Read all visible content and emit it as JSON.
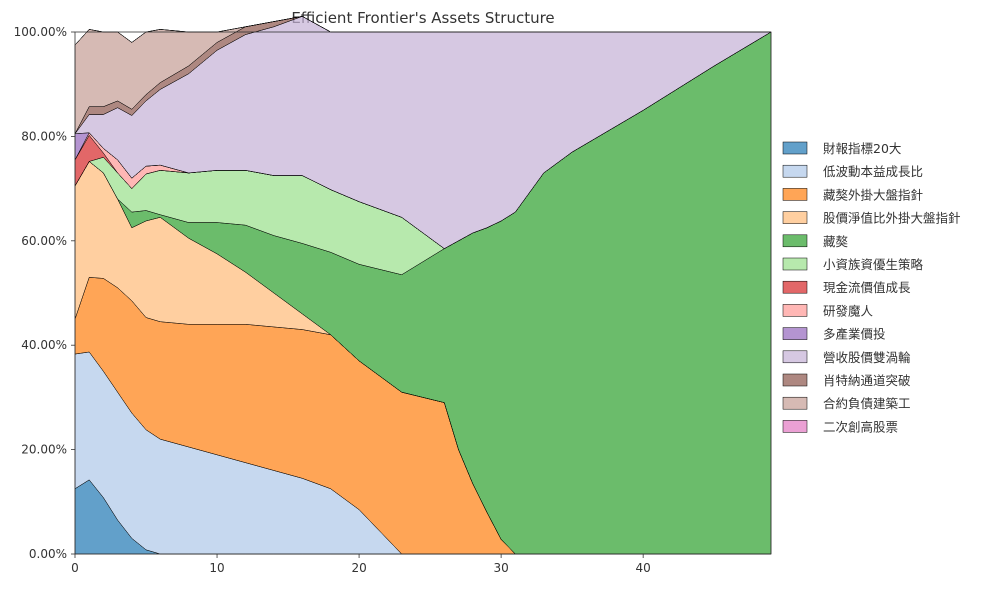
{
  "chart_data": {
    "type": "area",
    "stacked": true,
    "title": "Efficient Frontier's Assets Structure",
    "xlabel": "",
    "ylabel": "",
    "xlim": [
      0,
      49
    ],
    "ylim": [
      0,
      1
    ],
    "x_ticks": [
      0,
      10,
      20,
      30,
      40
    ],
    "y_ticks": [
      0,
      0.2,
      0.4,
      0.6,
      0.8,
      1.0
    ],
    "y_tick_labels": [
      "0.00%",
      "20.00%",
      "40.00%",
      "60.00%",
      "80.00%",
      "100.00%"
    ],
    "legend_position": "right",
    "grid": false,
    "x": [
      0,
      1,
      2,
      3,
      4,
      5,
      6,
      8,
      10,
      12,
      14,
      16,
      18,
      20,
      23,
      26,
      27,
      28,
      29,
      30,
      31,
      33,
      35,
      40,
      45,
      49
    ],
    "series": [
      {
        "name": "財報指標20大",
        "color": "#1f77b4",
        "values": [
          0.125,
          0.142,
          0.108,
          0.065,
          0.03,
          0.008,
          0,
          0,
          0,
          0,
          0,
          0,
          0,
          0,
          0,
          0,
          0,
          0,
          0,
          0,
          0,
          0,
          0,
          0,
          0,
          0
        ]
      },
      {
        "name": "低波動本益成長比",
        "color": "#aec7e8",
        "values": [
          0.258,
          0.245,
          0.242,
          0.245,
          0.24,
          0.23,
          0.22,
          0.205,
          0.19,
          0.175,
          0.16,
          0.145,
          0.125,
          0.085,
          0,
          0,
          0,
          0,
          0,
          0,
          0,
          0,
          0,
          0,
          0,
          0
        ]
      },
      {
        "name": "藏獒外掛大盤指針",
        "color": "#ff7f0e",
        "values": [
          0.067,
          0.143,
          0.178,
          0.2,
          0.215,
          0.215,
          0.225,
          0.235,
          0.25,
          0.265,
          0.275,
          0.285,
          0.295,
          0.285,
          0.31,
          0.29,
          0.2,
          0.135,
          0.08,
          0.028,
          0,
          0,
          0,
          0,
          0,
          0
        ]
      },
      {
        "name": "股價淨值比外掛大盤指針",
        "color": "#ffbb78",
        "values": [
          0.255,
          0.222,
          0.202,
          0.17,
          0.14,
          0.185,
          0.2,
          0.165,
          0.135,
          0.1,
          0.065,
          0.03,
          0,
          0,
          0,
          0,
          0,
          0,
          0,
          0,
          0,
          0,
          0,
          0,
          0,
          0
        ]
      },
      {
        "name": "藏獒",
        "color": "#2ca02c",
        "values": [
          0,
          0,
          0,
          0,
          0.03,
          0.02,
          0.005,
          0.03,
          0.06,
          0.09,
          0.11,
          0.135,
          0.158,
          0.185,
          0.225,
          0.295,
          0.4,
          0.48,
          0.545,
          0.61,
          0.655,
          0.73,
          0.77,
          0.85,
          0.935,
          1.0
        ]
      },
      {
        "name": "小資族資優生策略",
        "color": "#98df8a",
        "values": [
          0,
          0,
          0.03,
          0.05,
          0.045,
          0.07,
          0.085,
          0.095,
          0.1,
          0.105,
          0.115,
          0.13,
          0.12,
          0.12,
          0.11,
          0,
          0,
          0,
          0,
          0,
          0,
          0,
          0,
          0,
          0,
          0
        ]
      },
      {
        "name": "現金流價值成長",
        "color": "#d62728",
        "values": [
          0.05,
          0.05,
          0.008,
          0,
          0,
          0,
          0,
          0,
          0,
          0,
          0,
          0,
          0,
          0,
          0,
          0,
          0,
          0,
          0,
          0,
          0,
          0,
          0,
          0,
          0,
          0
        ]
      },
      {
        "name": "研發魔人",
        "color": "#ff9896",
        "values": [
          0,
          0.005,
          0.009,
          0.025,
          0.02,
          0.015,
          0.01,
          0,
          0,
          0,
          0,
          0,
          0,
          0,
          0,
          0,
          0,
          0,
          0,
          0,
          0,
          0,
          0,
          0,
          0,
          0
        ]
      },
      {
        "name": "多產業價投",
        "color": "#9467bd",
        "values": [
          0.05,
          0,
          0,
          0,
          0,
          0,
          0,
          0,
          0,
          0,
          0,
          0,
          0,
          0,
          0,
          0,
          0,
          0,
          0,
          0,
          0,
          0,
          0,
          0,
          0,
          0
        ]
      },
      {
        "name": "營收股價雙渦輪",
        "color": "#c5b0d5",
        "values": [
          0,
          0.035,
          0.065,
          0.1,
          0.12,
          0.125,
          0.145,
          0.19,
          0.23,
          0.26,
          0.285,
          0.305,
          0.302,
          0.325,
          0.355,
          0.415,
          0.4,
          0.385,
          0.375,
          0.362,
          0.345,
          0.27,
          0.23,
          0.15,
          0.065,
          0
        ]
      },
      {
        "name": "肖特納通道突破",
        "color": "#8c564b",
        "values": [
          0,
          0.015,
          0.015,
          0.013,
          0.012,
          0.012,
          0.013,
          0.015,
          0.015,
          0.015,
          0.01,
          0,
          0,
          0,
          0,
          0,
          0,
          0,
          0,
          0,
          0,
          0,
          0,
          0,
          0,
          0
        ]
      },
      {
        "name": "合約負債建築工",
        "color": "#c49c94",
        "values": [
          0.17,
          0.148,
          0.143,
          0.132,
          0.128,
          0.12,
          0.102,
          0.065,
          0.02,
          0.0,
          0,
          0,
          0,
          0,
          0,
          0,
          0,
          0,
          0,
          0,
          0,
          0,
          0,
          0,
          0,
          0
        ]
      },
      {
        "name": "二次創高股票",
        "color": "#e377c2",
        "values": [
          0,
          0,
          0,
          0,
          0,
          0,
          0,
          0,
          0,
          0,
          0,
          0,
          0,
          0,
          0,
          0,
          0,
          0,
          0,
          0,
          0,
          0,
          0,
          0,
          0,
          0
        ]
      }
    ]
  }
}
